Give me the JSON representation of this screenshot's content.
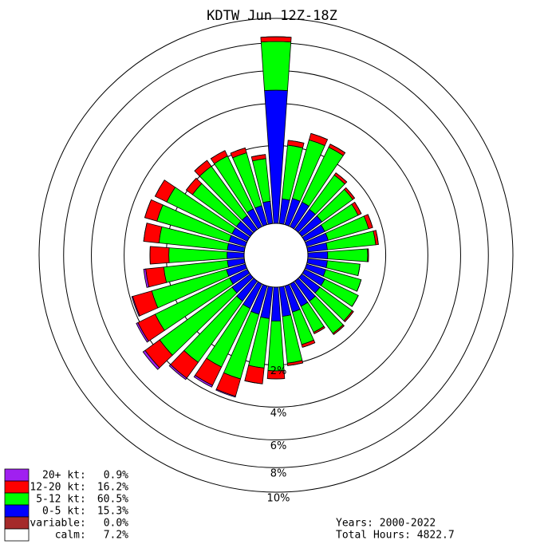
{
  "chart_data": {
    "type": "windrose",
    "title": "KDTW Jun 12Z-18Z",
    "rlim": [
      0,
      10
    ],
    "rticks": [
      {
        "value": 2,
        "label": "2%"
      },
      {
        "value": 4,
        "label": "4%"
      },
      {
        "value": 6,
        "label": "6%"
      },
      {
        "value": 8,
        "label": "8%"
      },
      {
        "value": 10,
        "label": "10%"
      }
    ],
    "legend_separator": ":",
    "series": [
      {
        "name": "0-5 kt",
        "color": "#0000ff",
        "share": 15.3,
        "share_label": "15.3%",
        "values": [
          4.76,
          0.4,
          0.45,
          0.45,
          0.4,
          0.4,
          0.35,
          0.35,
          0.3,
          0.3,
          0.3,
          0.3,
          0.35,
          0.35,
          0.4,
          0.4,
          0.45,
          0.5,
          0.6,
          0.55,
          0.5,
          0.45,
          0.4,
          0.35,
          0.3,
          0.3,
          0.25,
          0.25,
          0.25,
          0.25,
          0.25,
          0.25,
          0.25,
          0.3,
          0.3,
          0.35
        ]
      },
      {
        "name": "5-12 kt",
        "color": "#00ff00",
        "share": 60.5,
        "share_label": "60.5%",
        "values": [
          3.35,
          1.64,
          1.98,
          1.99,
          1.2,
          1.05,
          0.98,
          1.15,
          1.34,
          1.04,
          0.81,
          0.94,
          0.99,
          1.08,
          1.11,
          0.75,
          0.93,
          1.45,
          1.64,
          1.6,
          2.32,
          2.17,
          2.6,
          3.22,
          2.8,
          2.55,
          1.88,
          1.65,
          2.08,
          2.35,
          2.25,
          1.5,
          1.76,
          1.73,
          1.58,
          1.18
        ]
      },
      {
        "name": "12-20 kt",
        "color": "#ff0000",
        "share": 16.2,
        "share_label": "16.2%",
        "values": [
          0.37,
          0.2,
          0.3,
          0.15,
          0.1,
          0.08,
          0.12,
          0.15,
          0.1,
          0.03,
          0,
          0,
          0,
          0.05,
          0.05,
          0.05,
          0.1,
          0.1,
          0.35,
          0.7,
          0.9,
          1.0,
          1.0,
          1.0,
          1.0,
          1.0,
          0.8,
          0.8,
          0.7,
          0.6,
          0.6,
          0.3,
          0.3,
          0.25,
          0.2,
          0.15
        ]
      },
      {
        "name": "20+ kt",
        "color": "#a020f0",
        "share": 0.9,
        "share_label": "0.9%",
        "values": [
          0,
          0,
          0,
          0,
          0,
          0,
          0,
          0,
          0,
          0,
          0,
          0,
          0,
          0,
          0,
          0,
          0,
          0,
          0,
          0,
          0.05,
          0.1,
          0.1,
          0.15,
          0.1,
          0.05,
          0.1,
          0,
          0,
          0,
          0,
          0,
          0,
          0,
          0,
          0
        ]
      }
    ],
    "extra_legend": [
      {
        "name": "variable",
        "color": "#a52a2a",
        "share": 0.0,
        "share_label": "0.0%"
      },
      {
        "name": "calm",
        "color": "#ffffff",
        "share": 7.2,
        "share_label": "7.2%"
      }
    ],
    "footer": [
      "Years: 2000-2022",
      "Total Hours: 4822.7"
    ]
  }
}
